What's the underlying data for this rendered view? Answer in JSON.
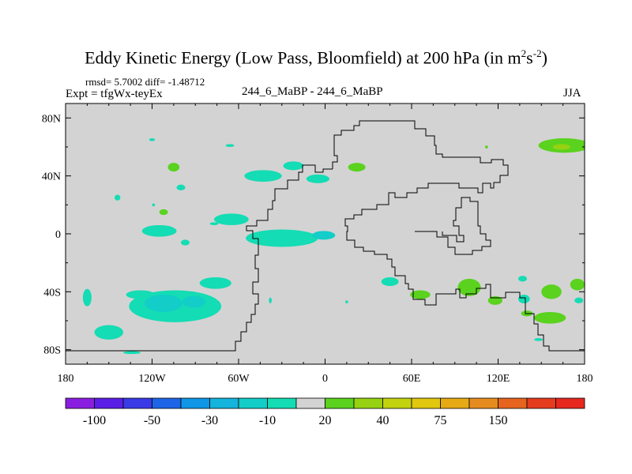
{
  "title": {
    "text": "Eddy Kinetic Energy (Low Pass, Bloomfield) at 200 hPa (in m",
    "unit_exp1": "2",
    "unit_mid": "s",
    "unit_exp2": "-2",
    "unit_close": ")"
  },
  "stats": "rmsd= 5.7002 diff= -1.48712",
  "expt": "Expt = tfgWx-teyEx",
  "case": "244_6_MaBP - 244_6_MaBP",
  "season": "JJA",
  "chart_data": {
    "type": "heatmap",
    "title": "Eddy Kinetic Energy (Low Pass, Bloomfield) at 200 hPa (in m^2 s^-2)",
    "xlim": [
      -180,
      180
    ],
    "ylim": [
      -90,
      90
    ],
    "x_ticks": [
      -180,
      -120,
      -60,
      0,
      60,
      120,
      180
    ],
    "x_tick_labels": [
      "180",
      "120W",
      "60W",
      "0",
      "60E",
      "120E",
      "180"
    ],
    "y_ticks": [
      80,
      40,
      0,
      -40,
      -80
    ],
    "y_tick_labels": [
      "80N",
      "40N",
      "0",
      "40S",
      "80S"
    ],
    "background_color": "#d3d3d3",
    "colorbar": {
      "colors": [
        "#8a1ee0",
        "#5a1ee6",
        "#3a3ae6",
        "#1e64e6",
        "#0f96e6",
        "#14b4dc",
        "#12cdc8",
        "#14dcb4",
        "#d3d3d3",
        "#5ad21e",
        "#96d212",
        "#c3d20f",
        "#e1c80f",
        "#e6aa14",
        "#e68c1e",
        "#e6641e",
        "#e63c1e",
        "#e6281e"
      ],
      "labels": [
        "-100",
        "-50",
        "-30",
        "-10",
        "20",
        "40",
        "75",
        "150"
      ]
    },
    "anomalies": [
      {
        "lon": -165,
        "lat": -44,
        "rlon": 3,
        "rlat": 6,
        "color": "#14dcb4"
      },
      {
        "lon": -128,
        "lat": -42,
        "rlon": 10,
        "rlat": 3,
        "color": "#14dcb4"
      },
      {
        "lon": -104,
        "lat": -50,
        "rlon": 32,
        "rlat": 11,
        "color": "#14dcb4"
      },
      {
        "lon": -112,
        "lat": -48,
        "rlon": 13,
        "rlat": 6,
        "color": "#12cdc8"
      },
      {
        "lon": -91,
        "lat": -47,
        "rlon": 8,
        "rlat": 4,
        "color": "#12cdc8"
      },
      {
        "lon": -76,
        "lat": -34,
        "rlon": 11,
        "rlat": 4,
        "color": "#14dcb4"
      },
      {
        "lon": -150,
        "lat": -68,
        "rlon": 10,
        "rlat": 5,
        "color": "#14dcb4"
      },
      {
        "lon": -115,
        "lat": 2,
        "rlon": 12,
        "rlat": 4,
        "color": "#14dcb4"
      },
      {
        "lon": -97,
        "lat": -6,
        "rlon": 3,
        "rlat": 2,
        "color": "#14dcb4"
      },
      {
        "lon": -144,
        "lat": 25,
        "rlon": 2,
        "rlat": 2,
        "color": "#14dcb4"
      },
      {
        "lon": -119,
        "lat": 20,
        "rlon": 1,
        "rlat": 1,
        "color": "#14dcb4"
      },
      {
        "lon": -112,
        "lat": 15,
        "rlon": 3,
        "rlat": 2,
        "color": "#5ad21e"
      },
      {
        "lon": -77,
        "lat": 7,
        "rlon": 3,
        "rlat": 1,
        "color": "#14dcb4"
      },
      {
        "lon": -65,
        "lat": 10,
        "rlon": 12,
        "rlat": 4,
        "color": "#14dcb4"
      },
      {
        "lon": -30,
        "lat": -3,
        "rlon": 25,
        "rlat": 6,
        "color": "#14dcb4"
      },
      {
        "lon": -1,
        "lat": -1,
        "rlon": 8,
        "rlat": 3,
        "color": "#12cdc8"
      },
      {
        "lon": -43,
        "lat": 40,
        "rlon": 13,
        "rlat": 4,
        "color": "#14dcb4"
      },
      {
        "lon": -22,
        "lat": 47,
        "rlon": 7,
        "rlat": 3,
        "color": "#14dcb4"
      },
      {
        "lon": -5,
        "lat": 38,
        "rlon": 8,
        "rlat": 3,
        "color": "#14dcb4"
      },
      {
        "lon": 22,
        "lat": 46,
        "rlon": 6,
        "rlat": 3,
        "color": "#5ad21e"
      },
      {
        "lon": -105,
        "lat": 46,
        "rlon": 4,
        "rlat": 3,
        "color": "#5ad21e"
      },
      {
        "lon": -100,
        "lat": 32,
        "rlon": 3,
        "rlat": 2,
        "color": "#14dcb4"
      },
      {
        "lon": -120,
        "lat": 65,
        "rlon": 2,
        "rlat": 1,
        "color": "#14dcb4"
      },
      {
        "lon": -66,
        "lat": 61,
        "rlon": 3,
        "rlat": 1,
        "color": "#14dcb4"
      },
      {
        "lon": 166,
        "lat": 61,
        "rlon": 18,
        "rlat": 5,
        "color": "#5ad21e"
      },
      {
        "lon": 164,
        "lat": 60,
        "rlon": 6,
        "rlat": 2,
        "color": "#96d212"
      },
      {
        "lon": 157,
        "lat": -40,
        "rlon": 7,
        "rlat": 5,
        "color": "#5ad21e"
      },
      {
        "lon": 156,
        "lat": -58,
        "rlon": 11,
        "rlat": 4,
        "color": "#5ad21e"
      },
      {
        "lon": 138,
        "lat": -45,
        "rlon": 4,
        "rlat": 3,
        "color": "#14dcb4"
      },
      {
        "lon": 100,
        "lat": -37,
        "rlon": 8,
        "rlat": 6,
        "color": "#5ad21e"
      },
      {
        "lon": 118,
        "lat": -46,
        "rlon": 5,
        "rlat": 3,
        "color": "#5ad21e"
      },
      {
        "lon": 66,
        "lat": -42,
        "rlon": 7,
        "rlat": 3,
        "color": "#5ad21e"
      },
      {
        "lon": 45,
        "lat": -33,
        "rlon": 6,
        "rlat": 3,
        "color": "#14dcb4"
      },
      {
        "lon": 140,
        "lat": -55,
        "rlon": 4,
        "rlat": 2,
        "color": "#5ad21e"
      },
      {
        "lon": 175,
        "lat": -35,
        "rlon": 5,
        "rlat": 4,
        "color": "#5ad21e"
      },
      {
        "lon": 176,
        "lat": -46,
        "rlon": 3,
        "rlat": 2,
        "color": "#14dcb4"
      },
      {
        "lon": 137,
        "lat": -31,
        "rlon": 3,
        "rlat": 2,
        "color": "#14dcb4"
      },
      {
        "lon": 148,
        "lat": -73,
        "rlon": 3,
        "rlat": 1,
        "color": "#14dcb4"
      },
      {
        "lon": -38,
        "lat": -46,
        "rlon": 1,
        "rlat": 2,
        "color": "#14dcb4"
      },
      {
        "lon": 15,
        "lat": -47,
        "rlon": 1,
        "rlat": 1,
        "color": "#14dcb4"
      },
      {
        "lon": 112,
        "lat": 60,
        "rlon": 1,
        "rlat": 1,
        "color": "#5ad21e"
      },
      {
        "lon": -134,
        "lat": -82,
        "rlon": 6,
        "rlat": 1,
        "color": "#14dcb4"
      }
    ]
  }
}
